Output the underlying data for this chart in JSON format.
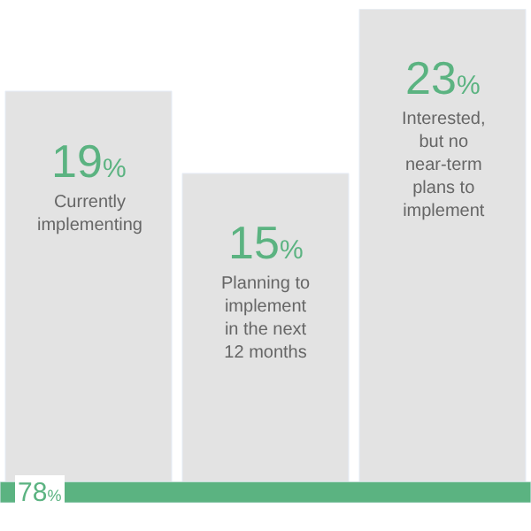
{
  "chart_data": [
    {
      "type": "bar",
      "categories": [
        "Currently implementing",
        "Planning to implement in the next 12 months",
        "Interested, but no near-term plans to implement"
      ],
      "values": [
        19,
        15,
        23
      ],
      "value_labels": [
        "19%",
        "15%",
        "23%"
      ],
      "color": "#e3e3e3"
    },
    {
      "type": "bar",
      "orientation": "horizontal",
      "categories": [
        null
      ],
      "values": [
        78
      ],
      "value_labels": [
        "78%"
      ],
      "color": "#5bb381"
    }
  ]
}
